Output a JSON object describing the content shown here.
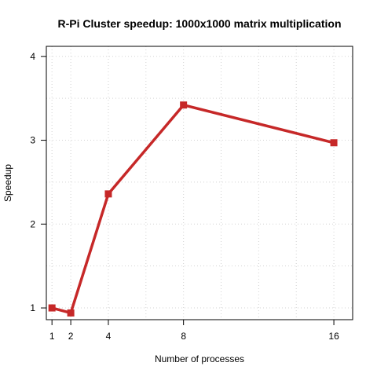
{
  "chart_data": {
    "type": "line",
    "title": "R-Pi Cluster speedup: 1000x1000 matrix multiplication",
    "xlabel": "Number of processes",
    "ylabel": "Speedup",
    "x": [
      1,
      2,
      4,
      8,
      16
    ],
    "series": [
      {
        "values": [
          1.0,
          0.94,
          2.36,
          3.42,
          2.97
        ]
      }
    ],
    "xlim": [
      0.7,
      17
    ],
    "ylim": [
      0.86,
      4.12
    ],
    "x_ticks": [
      1,
      2,
      4,
      8,
      16
    ],
    "y_ticks": [
      1,
      2,
      3,
      4
    ],
    "x_grid": [
      1,
      2,
      4,
      6,
      8,
      10,
      12,
      14,
      16
    ],
    "y_grid": [
      1,
      1.5,
      2,
      2.5,
      3,
      3.5,
      4
    ],
    "grid": true,
    "line_color": "#c62828",
    "marker": "square"
  }
}
